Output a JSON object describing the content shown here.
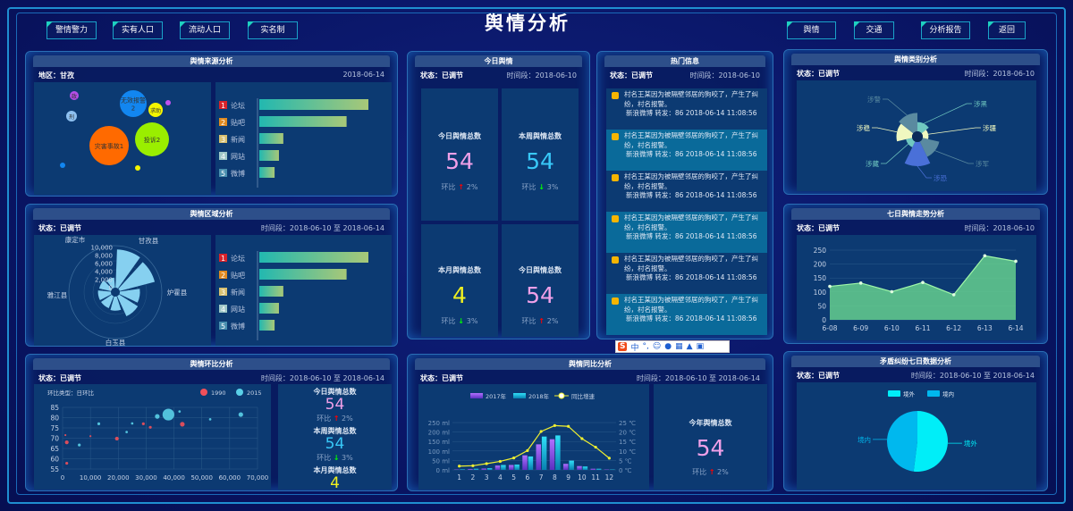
{
  "header": {
    "title": "舆情分析",
    "left_buttons": [
      "警情警力",
      "实有人口",
      "流动人口",
      "实名制"
    ],
    "right_buttons": [
      "舆情",
      "交通",
      "分析报告",
      "返回"
    ]
  },
  "colors": {
    "accent": "#1ed0c0",
    "panel_bg": "#0c3a72",
    "up": "#ff0000",
    "down": "#00ff00"
  },
  "source": {
    "title": "舆情来源分析",
    "region": "地区：甘孜",
    "date": "2018-06-14",
    "bubbles": [
      {
        "label": "无效报警\n2",
        "color": "#1286f0"
      },
      {
        "label": "灾害事故1",
        "color": "#ff6a00"
      },
      {
        "label": "投诉2",
        "color": "#9aee00"
      },
      {
        "label": "求助",
        "color": "#f5f500"
      },
      {
        "label": "政",
        "color": "#b44ee8"
      },
      {
        "label": "刑",
        "color": "#8ec0f0"
      },
      {
        "label": "",
        "color": "#c050f0"
      },
      {
        "label": "",
        "color": "#1286f0"
      },
      {
        "label": "",
        "color": "#f5f500"
      }
    ],
    "ranking": [
      {
        "rank": "1",
        "name": "论坛",
        "value": 100,
        "color": "#d8222a"
      },
      {
        "rank": "2",
        "name": "贴吧",
        "value": 80,
        "color": "#e08a20"
      },
      {
        "rank": "3",
        "name": "新闻",
        "value": 22,
        "color": "#d8c070"
      },
      {
        "rank": "4",
        "name": "网站",
        "value": 18,
        "color": "#a0c8c8"
      },
      {
        "rank": "5",
        "name": "微博",
        "value": 14,
        "color": "#4a90b0"
      }
    ]
  },
  "region": {
    "title": "舆情区域分析",
    "status": "状态：已调节",
    "period": "时间段：2018-06-10 至 2018-06-14",
    "chart_data": {
      "type": "polar-bar",
      "radial_ticks": [
        "0",
        "2,000",
        "4,000",
        "6,000",
        "8,000",
        "10,000"
      ],
      "rmax": 10000,
      "values": [
        9500,
        9000,
        5000,
        5500,
        3500,
        3200,
        3200,
        3000,
        2500
      ],
      "angle_labels": [
        "甘孜县",
        "炉霍县",
        "白玉县",
        "雅江县",
        "康定市"
      ]
    },
    "ranking": [
      {
        "rank": "1",
        "name": "论坛",
        "value": 100,
        "color": "#d8222a"
      },
      {
        "rank": "2",
        "name": "贴吧",
        "value": 80,
        "color": "#e08a20"
      },
      {
        "rank": "3",
        "name": "新闻",
        "value": 22,
        "color": "#d8c070"
      },
      {
        "rank": "4",
        "name": "网站",
        "value": 18,
        "color": "#a0c8c8"
      },
      {
        "rank": "5",
        "name": "微博",
        "value": 14,
        "color": "#4a90b0"
      }
    ]
  },
  "ring": {
    "title": "舆情环比分析",
    "status": "状态：已调节",
    "period": "时间段：2018-06-10 至 2018-06-14",
    "type_label": "环比类型：日环比",
    "chart_data": {
      "type": "scatter",
      "xlim": [
        0,
        70000
      ],
      "ylim": [
        55,
        85
      ],
      "xticks": [
        "0",
        "10,000",
        "20,000",
        "30,000",
        "40,000",
        "50,000",
        "60,000",
        "70,000"
      ],
      "yticks": [
        "55",
        "60",
        "65",
        "70",
        "75",
        "80",
        "85"
      ],
      "series": [
        {
          "name": "1990",
          "color": "#f0505a",
          "points": [
            [
              1500,
              68,
              3
            ],
            [
              19500,
              69.8,
              3
            ],
            [
              43000,
              76.8,
              4
            ],
            [
              31500,
              75.3,
              2
            ],
            [
              1500,
              57.8,
              2
            ],
            [
              29000,
              77,
              2
            ],
            [
              10000,
              71,
              1
            ],
            [
              1000,
              71.5,
              1
            ]
          ]
        },
        {
          "name": "2015",
          "color": "#5ad0e8",
          "points": [
            [
              38000,
              81.5,
              12
            ],
            [
              34000,
              80.6,
              4
            ],
            [
              64000,
              81.5,
              4
            ],
            [
              13000,
              77,
              2
            ],
            [
              6000,
              66.7,
              2
            ],
            [
              23000,
              73,
              1.5
            ],
            [
              25000,
              77.2,
              1.5
            ],
            [
              42000,
              83,
              1.5
            ],
            [
              53000,
              79.2,
              1.5
            ]
          ]
        }
      ]
    },
    "stats": [
      {
        "label": "今日舆情总数",
        "value": "54",
        "color": "#f0a0e8",
        "trend": "环比",
        "dir": "up",
        "pct": "2%"
      },
      {
        "label": "本周舆情总数",
        "value": "54",
        "color": "#38c8f8",
        "trend": "环比",
        "dir": "down",
        "pct": "3%"
      },
      {
        "label": "本月舆情总数",
        "value": "4",
        "color": "#f0f020"
      }
    ]
  },
  "today": {
    "title": "今日舆情",
    "status": "状态：已调节",
    "period": "时间段：2018-06-10",
    "cells": [
      {
        "label": "今日舆情总数",
        "value": "54",
        "color": "#f0a0e8",
        "trend": "环比",
        "dir": "up",
        "pct": "2%"
      },
      {
        "label": "本周舆情总数",
        "value": "54",
        "color": "#38c8f8",
        "trend": "环比",
        "dir": "down",
        "pct": "3%"
      },
      {
        "label": "本月舆情总数",
        "value": "4",
        "color": "#f0f020",
        "trend": "环比",
        "dir": "down",
        "pct": "3%"
      },
      {
        "label": "今日舆情总数",
        "value": "54",
        "color": "#f0a0e8",
        "trend": "环比",
        "dir": "up",
        "pct": "2%"
      }
    ]
  },
  "hot": {
    "title": "热门信息",
    "status": "状态：已调节",
    "period": "时间段：2018-06-10",
    "items": [
      {
        "text": "村名王某因为被隔壁邻居的狗咬了，产生了纠纷，村名报警。",
        "meta": "新浪微博 转发：86 2018-06-14 11:08:56"
      },
      {
        "text": "村名王某因为被隔壁邻居的狗咬了，产生了纠纷，村名报警。",
        "meta": "新浪微博 转发：86 2018-06-14 11:08:56"
      },
      {
        "text": "村名王某因为被隔壁邻居的狗咬了，产生了纠纷，村名报警。",
        "meta": "新浪微博 转发：86 2018-06-14 11:08:56"
      },
      {
        "text": "村名王某因为被隔壁邻居的狗咬了，产生了纠纷，村名报警。",
        "meta": "新浪微博 转发：86 2018-06-14 11:08:56"
      },
      {
        "text": "村名王某因为被隔壁邻居的狗咬了，产生了纠纷，村名报警。",
        "meta": "新浪微博 转发：86 2018-06-14 11:08:56"
      },
      {
        "text": "村名王某因为被隔壁邻居的狗咬了，产生了纠纷，村名报警。",
        "meta": "新浪微博 转发：86 2018-06-14 11:08:56"
      }
    ]
  },
  "yoy": {
    "title": "舆情同比分析",
    "status": "状态：已调节",
    "period": "时间段：2018-06-10 至 2018-06-14",
    "chart_data": {
      "type": "bar+line",
      "categories": [
        "1",
        "2",
        "3",
        "4",
        "5",
        "6",
        "7",
        "8",
        "9",
        "10",
        "11",
        "12"
      ],
      "yleft": {
        "ticks": [
          "0 ml",
          "50 ml",
          "100 ml",
          "150 ml",
          "200 ml",
          "250 ml"
        ],
        "max": 250
      },
      "yright": {
        "ticks": [
          "0 ℃",
          "5 ℃",
          "10 ℃",
          "15 ℃",
          "20 ℃",
          "25 ℃"
        ],
        "max": 25
      },
      "series": [
        {
          "name": "2017年",
          "type": "bar",
          "color": "#9a5cf0",
          "values": [
            2,
            5,
            7,
            23,
            26,
            77,
            135,
            162,
            32,
            20,
            6,
            2
          ]
        },
        {
          "name": "2018年",
          "type": "bar",
          "color": "#18c8e8",
          "values": [
            3,
            6,
            9,
            26,
            28,
            71,
            176,
            182,
            49,
            18,
            6,
            2
          ]
        },
        {
          "name": "同比增速",
          "type": "line",
          "color": "#f0f030",
          "values": [
            2,
            2.2,
            3.3,
            4.5,
            6.3,
            10.2,
            20.3,
            23.4,
            23,
            16.5,
            12,
            6.2
          ]
        }
      ]
    },
    "summary": {
      "label": "今年舆情总数",
      "value": "54",
      "trend": "环比",
      "dir": "up",
      "pct": "2%"
    }
  },
  "category": {
    "title": "舆情类别分析",
    "status": "状态：已调节",
    "period": "时间段：2018-06-10",
    "chart_data": {
      "type": "rose",
      "labels": [
        "涉黑",
        "涉疆",
        "涉军",
        "涉恐",
        "涉藏",
        "涉稳",
        "涉警"
      ],
      "values": [
        13,
        8,
        24,
        34,
        9,
        22,
        26
      ],
      "colors": [
        "#70c8c0",
        "#f0f8c0",
        "#5a8aa0",
        "#4a70d8",
        "#70c8c0",
        "#f0f8c0",
        "#5a8aa0"
      ]
    }
  },
  "trend": {
    "title": "七日舆情走势分析",
    "status": "状态：已调节",
    "period": "时间段：2018-06-10",
    "chart_data": {
      "type": "area",
      "x": [
        "6-08",
        "6-09",
        "6-10",
        "6-11",
        "6-12",
        "6-13",
        "6-14"
      ],
      "values": [
        120,
        132,
        101,
        134,
        90,
        230,
        210
      ],
      "ylim": [
        0,
        250
      ],
      "yticks": [
        "0",
        "50",
        "100",
        "150",
        "200",
        "250"
      ],
      "color": "#6ad890"
    }
  },
  "dispute": {
    "title": "矛盾纠纷七日数据分析",
    "status": "状态：已调节",
    "period": "时间段：2018-06-10 至 2018-06-14",
    "chart_data": {
      "type": "pie",
      "labels": [
        "境外",
        "境内"
      ],
      "values": [
        52,
        48
      ],
      "colors": [
        "#00eef8",
        "#00b8ee"
      ]
    }
  },
  "ime": {
    "label": "中"
  }
}
